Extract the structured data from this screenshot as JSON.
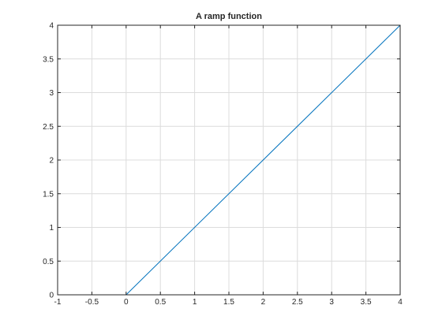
{
  "chart_data": {
    "type": "line",
    "title": "A ramp function",
    "xlabel": "",
    "ylabel": "",
    "xlim": [
      -1,
      4
    ],
    "ylim": [
      0,
      4
    ],
    "x_ticks": [
      -1,
      -0.5,
      0,
      0.5,
      1,
      1.5,
      2,
      2.5,
      3,
      3.5,
      4
    ],
    "x_tick_labels": [
      "-1",
      "-0.5",
      "0",
      "0.5",
      "1",
      "1.5",
      "2",
      "2.5",
      "3",
      "3.5",
      "4"
    ],
    "y_ticks": [
      0,
      0.5,
      1,
      1.5,
      2,
      2.5,
      3,
      3.5,
      4
    ],
    "y_tick_labels": [
      "0",
      "0.5",
      "1",
      "1.5",
      "2",
      "2.5",
      "3",
      "3.5",
      "4"
    ],
    "grid": true,
    "series": [
      {
        "color": "#0072bd",
        "x": [
          -1,
          0,
          4
        ],
        "y": [
          0,
          0,
          4
        ]
      }
    ]
  }
}
